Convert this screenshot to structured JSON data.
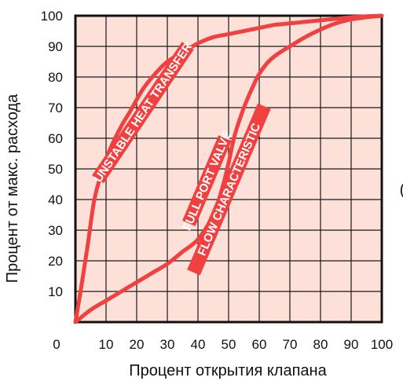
{
  "chart_data": {
    "type": "line",
    "title": "",
    "xlabel": "Процент открытия клапана",
    "ylabel": "Процент от макс. расхода",
    "xlim": [
      0,
      100
    ],
    "ylim": [
      0,
      100
    ],
    "x_ticks": [
      10,
      20,
      30,
      40,
      50,
      60,
      70,
      80,
      90,
      100
    ],
    "y_ticks": [
      10,
      20,
      30,
      40,
      50,
      60,
      70,
      80,
      90,
      100
    ],
    "origin_label": "0",
    "grid": true,
    "colors": {
      "plot_bg": "#fde0d8",
      "grid": "#1a1a1a",
      "line": "#f04040",
      "frame": "#111111"
    },
    "series": [
      {
        "label": "UNSTABLE HEAT TRANSFER",
        "x": [
          0,
          2,
          4,
          6,
          8,
          10,
          12,
          15,
          18,
          22,
          26,
          30,
          35,
          40,
          45,
          50,
          55,
          60,
          65,
          70,
          75,
          80,
          85,
          90,
          95,
          100
        ],
        "y": [
          0,
          12,
          25,
          39,
          47,
          53,
          58,
          64,
          69,
          76,
          81,
          85,
          88,
          91,
          93,
          94,
          95,
          96,
          97,
          97.5,
          98,
          98.5,
          99,
          99.5,
          99.8,
          100
        ]
      },
      {
        "label": "FULL PORT VALVE FLOW CHARACTERISTIC",
        "x": [
          0,
          5,
          10,
          15,
          20,
          25,
          30,
          35,
          40,
          45,
          48,
          50,
          52,
          55,
          58,
          60,
          63,
          66,
          70,
          75,
          80,
          85,
          90,
          95,
          100
        ],
        "y": [
          0,
          4,
          7,
          10,
          13,
          16,
          19,
          23,
          27,
          35,
          44,
          52,
          61,
          70,
          77,
          81,
          85,
          87.5,
          90,
          93,
          95.5,
          97.5,
          98.8,
          99.5,
          100
        ]
      }
    ],
    "edge_fragment": "("
  }
}
